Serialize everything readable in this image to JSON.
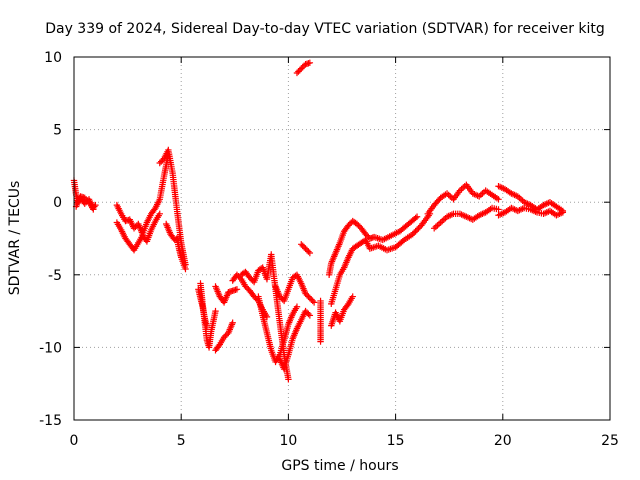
{
  "chart_data": {
    "type": "scatter",
    "title": "Day 339 of 2024, Sidereal Day-to-day VTEC variation (SDTVAR) for receiver kitg",
    "xlabel": "GPS time / hours",
    "ylabel": "SDTVAR / TECUs",
    "xlim": [
      0,
      25
    ],
    "ylim": [
      -15,
      10
    ],
    "xticks": [
      "0",
      "5",
      "10",
      "15",
      "20",
      "25"
    ],
    "yticks": [
      "10",
      "5",
      "0",
      "-5",
      "-10",
      "-15"
    ],
    "grid": true,
    "marker": "plus",
    "color": "#ff0000",
    "segments": [
      {
        "name": "s1",
        "x": [
          0.0,
          0.1,
          0.2,
          0.3,
          0.5,
          0.7,
          0.9,
          1.0
        ],
        "y": [
          1.5,
          0.5,
          0.0,
          0.3,
          -0.1,
          0.2,
          -0.4,
          -0.2
        ]
      },
      {
        "name": "s2",
        "x": [
          0.1,
          0.3,
          0.5,
          0.7,
          0.9
        ],
        "y": [
          -0.3,
          0.4,
          0.3,
          0.0,
          -0.5
        ]
      },
      {
        "name": "s3",
        "x": [
          2.0,
          2.2,
          2.4,
          2.6,
          2.8,
          3.0,
          3.2,
          3.4,
          3.6,
          3.8,
          4.0,
          4.2,
          4.4
        ],
        "y": [
          -0.2,
          -0.8,
          -1.3,
          -1.2,
          -1.8,
          -1.5,
          -2.2,
          -1.4,
          -0.8,
          -0.4,
          0.2,
          1.8,
          3.3
        ]
      },
      {
        "name": "s4",
        "x": [
          2.0,
          2.2,
          2.4,
          2.6,
          2.8,
          3.0,
          3.2,
          3.4,
          3.6,
          3.8,
          4.0
        ],
        "y": [
          -1.4,
          -1.9,
          -2.5,
          -2.9,
          -3.3,
          -2.8,
          -2.3,
          -2.7,
          -1.9,
          -1.3,
          -0.8
        ]
      },
      {
        "name": "s5",
        "x": [
          4.0,
          4.2,
          4.4,
          4.6,
          4.8,
          5.0,
          5.2
        ],
        "y": [
          2.7,
          3.0,
          3.6,
          2.0,
          -0.5,
          -2.8,
          -4.3
        ]
      },
      {
        "name": "s6",
        "x": [
          4.3,
          4.5,
          4.7,
          4.9
        ],
        "y": [
          -1.5,
          -2.2,
          -2.6,
          -2.5
        ]
      },
      {
        "name": "s7",
        "x": [
          4.8,
          4.9,
          5.0,
          5.1,
          5.2
        ],
        "y": [
          -2.5,
          -3.2,
          -3.8,
          -4.2,
          -4.6
        ]
      },
      {
        "name": "s8",
        "x": [
          5.9,
          6.0,
          6.1,
          6.2,
          6.3,
          6.4,
          6.6
        ],
        "y": [
          -5.6,
          -7.0,
          -8.3,
          -9.5,
          -10.0,
          -8.9,
          -7.5
        ]
      },
      {
        "name": "s9",
        "x": [
          5.8,
          5.9,
          6.0,
          6.1,
          6.2
        ],
        "y": [
          -6.0,
          -6.6,
          -7.2,
          -8.0,
          -8.6
        ]
      },
      {
        "name": "s10",
        "x": [
          6.6,
          6.8,
          7.0,
          7.2,
          7.4,
          7.6
        ],
        "y": [
          -5.8,
          -6.5,
          -6.9,
          -6.2,
          -6.1,
          -6.0
        ]
      },
      {
        "name": "s11",
        "x": [
          6.6,
          6.8,
          7.0,
          7.2,
          7.4
        ],
        "y": [
          -10.2,
          -9.8,
          -9.3,
          -9.0,
          -8.3
        ]
      },
      {
        "name": "s12",
        "x": [
          7.4,
          7.6,
          7.8,
          8.0,
          8.2,
          8.4,
          8.6,
          8.8,
          9.0
        ],
        "y": [
          -5.4,
          -5.0,
          -5.3,
          -5.8,
          -6.1,
          -6.5,
          -6.8,
          -7.4,
          -7.9
        ]
      },
      {
        "name": "s13",
        "x": [
          7.8,
          8.0,
          8.2,
          8.4,
          8.6,
          8.8,
          9.0,
          9.2,
          9.4,
          9.6,
          9.8,
          10.0
        ],
        "y": [
          -5.0,
          -4.8,
          -5.2,
          -5.5,
          -4.7,
          -4.5,
          -5.3,
          -3.6,
          -6.0,
          -8.3,
          -10.5,
          -12.2
        ]
      },
      {
        "name": "s14",
        "x": [
          8.6,
          8.8,
          9.0,
          9.2,
          9.4,
          9.6,
          9.8,
          10.0,
          10.2,
          10.4
        ],
        "y": [
          -6.5,
          -7.8,
          -9.0,
          -10.2,
          -11.0,
          -10.5,
          -9.5,
          -8.4,
          -7.7,
          -7.2
        ]
      },
      {
        "name": "s15",
        "x": [
          9.4,
          9.6,
          9.8,
          10.0,
          10.2,
          10.4,
          10.6,
          10.8,
          11.0,
          11.2
        ],
        "y": [
          -5.8,
          -6.5,
          -6.8,
          -6.0,
          -5.2,
          -5.0,
          -5.6,
          -6.3,
          -6.6,
          -6.9
        ]
      },
      {
        "name": "s16",
        "x": [
          9.6,
          9.8,
          10.0,
          10.2,
          10.4,
          10.6,
          10.8,
          11.0
        ],
        "y": [
          -10.8,
          -11.5,
          -10.5,
          -9.4,
          -8.7,
          -8.1,
          -7.5,
          -7.8
        ]
      },
      {
        "name": "s17",
        "x": [
          10.4,
          10.6,
          10.8,
          11.0
        ],
        "y": [
          8.9,
          9.2,
          9.5,
          9.6
        ]
      },
      {
        "name": "s18",
        "x": [
          10.6,
          10.8,
          11.0
        ],
        "y": [
          -2.9,
          -3.2,
          -3.5
        ]
      },
      {
        "name": "s19",
        "x": [
          11.5,
          11.5,
          11.5
        ],
        "y": [
          -6.8,
          -8.8,
          -9.6
        ]
      },
      {
        "name": "s20",
        "x": [
          11.9,
          12.0,
          12.2,
          12.4,
          12.6,
          12.8,
          13.0,
          13.2,
          13.4,
          13.6,
          13.8,
          14.0,
          14.4,
          14.8,
          15.2,
          15.6,
          16.0
        ],
        "y": [
          -5.0,
          -4.2,
          -3.5,
          -2.8,
          -2.0,
          -1.6,
          -1.3,
          -1.5,
          -1.8,
          -2.2,
          -2.5,
          -2.4,
          -2.6,
          -2.3,
          -2.0,
          -1.5,
          -1.0
        ]
      },
      {
        "name": "s21",
        "x": [
          12.0,
          12.2,
          12.4,
          12.6,
          12.8,
          13.0,
          13.2,
          13.4,
          13.6,
          13.8,
          14.2,
          14.6,
          15.0,
          15.4,
          15.8,
          16.2,
          16.6
        ],
        "y": [
          -7.0,
          -6.0,
          -5.0,
          -4.5,
          -3.8,
          -3.2,
          -3.0,
          -2.8,
          -2.6,
          -3.2,
          -3.0,
          -3.3,
          -3.1,
          -2.6,
          -2.2,
          -1.6,
          -0.8
        ]
      },
      {
        "name": "s22",
        "x": [
          12.0,
          12.2,
          12.4,
          12.6,
          12.8,
          13.0
        ],
        "y": [
          -8.5,
          -7.6,
          -8.2,
          -7.4,
          -7.0,
          -6.5
        ]
      },
      {
        "name": "s23",
        "x": [
          16.5,
          16.8,
          17.1,
          17.4,
          17.7,
          18.0,
          18.3,
          18.6,
          18.9,
          19.2,
          19.5,
          19.8
        ],
        "y": [
          -0.8,
          -0.2,
          0.3,
          0.6,
          0.2,
          0.8,
          1.2,
          0.6,
          0.4,
          0.8,
          0.5,
          0.2
        ]
      },
      {
        "name": "s24",
        "x": [
          16.8,
          17.1,
          17.4,
          17.7,
          18.0,
          18.3,
          18.6,
          18.9,
          19.2,
          19.5,
          19.8
        ],
        "y": [
          -1.8,
          -1.4,
          -1.0,
          -0.8,
          -0.8,
          -1.0,
          -1.2,
          -0.9,
          -0.7,
          -0.4,
          -0.5
        ]
      },
      {
        "name": "s25",
        "x": [
          19.8,
          20.1,
          20.4,
          20.7,
          21.0,
          21.3,
          21.6,
          21.9,
          22.2,
          22.5,
          22.8
        ],
        "y": [
          1.1,
          0.9,
          0.6,
          0.4,
          0.0,
          -0.2,
          -0.5,
          -0.2,
          0.0,
          -0.3,
          -0.6
        ]
      },
      {
        "name": "s26",
        "x": [
          19.8,
          20.1,
          20.4,
          20.7,
          21.0,
          21.3,
          21.6,
          21.9,
          22.2,
          22.5,
          22.8
        ],
        "y": [
          -0.9,
          -0.7,
          -0.4,
          -0.6,
          -0.4,
          -0.5,
          -0.7,
          -0.8,
          -0.6,
          -0.9,
          -0.7
        ]
      }
    ]
  }
}
